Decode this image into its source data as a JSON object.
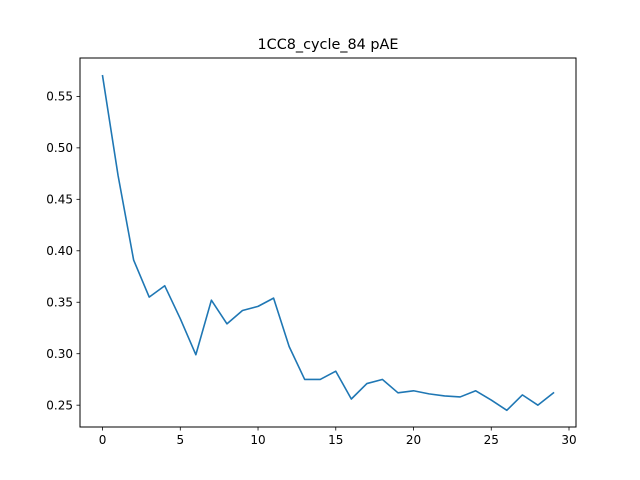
{
  "chart_data": {
    "type": "line",
    "title": "1CC8_cycle_84 pAE",
    "xlabel": "",
    "ylabel": "",
    "xlim": [
      -1.45,
      30.45
    ],
    "ylim": [
      0.2288,
      0.5873
    ],
    "grid": false,
    "x_ticks": [
      0,
      5,
      10,
      15,
      20,
      25,
      30
    ],
    "x_tick_labels": [
      "0",
      "5",
      "10",
      "15",
      "20",
      "25",
      "30"
    ],
    "y_ticks": [
      0.25,
      0.3,
      0.35,
      0.4,
      0.45,
      0.5,
      0.55
    ],
    "y_tick_labels": [
      "0.25",
      "0.30",
      "0.35",
      "0.40",
      "0.45",
      "0.50",
      "0.55"
    ],
    "series": [
      {
        "color": "#1f77b4",
        "x": [
          0,
          1,
          2,
          3,
          4,
          5,
          6,
          7,
          8,
          9,
          10,
          11,
          12,
          13,
          14,
          15,
          16,
          17,
          18,
          19,
          20,
          21,
          22,
          23,
          24,
          25,
          26,
          27,
          28,
          29
        ],
        "values": [
          0.57,
          0.473,
          0.391,
          0.355,
          0.366,
          0.334,
          0.299,
          0.352,
          0.329,
          0.342,
          0.346,
          0.354,
          0.307,
          0.275,
          0.275,
          0.283,
          0.256,
          0.271,
          0.275,
          0.262,
          0.264,
          0.261,
          0.259,
          0.258,
          0.264,
          0.255,
          0.245,
          0.26,
          0.25,
          0.262
        ]
      }
    ]
  }
}
